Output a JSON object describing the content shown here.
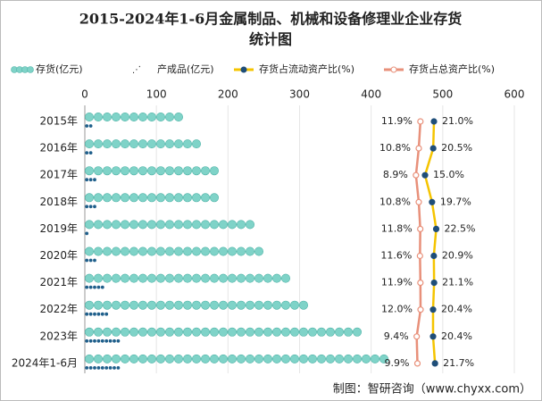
{
  "chart_data": {
    "type": "pictorial-bar-line",
    "title": [
      "2015-2024年1-6月金属制品、机械和设备修理业企业存货",
      "统计图"
    ],
    "categories": [
      "2015年",
      "2016年",
      "2017年",
      "2018年",
      "2019年",
      "2020年",
      "2021年",
      "2022年",
      "2023年",
      "2024年1-6月"
    ],
    "xlim": [
      0,
      600
    ],
    "xticks": [
      0,
      100,
      200,
      300,
      400,
      500,
      600
    ],
    "grid": true,
    "x2lim": [
      -213.6,
      75
    ],
    "series": [
      {
        "name": "存货(亿元)",
        "color": "#7fd3c8",
        "values": [
          143,
          170,
          190,
          198,
          241,
          249,
          287,
          323,
          388,
          427
        ]
      },
      {
        "name": "产成品(亿元)",
        "color": "#1f5f8b",
        "values": [
          14,
          14,
          16,
          17,
          10,
          16,
          31,
          37,
          49,
          54
        ]
      },
      {
        "name": "存货占流动资产比(%)",
        "color": "#f5c400",
        "axis": "x2",
        "values": [
          21.0,
          20.5,
          15.0,
          19.7,
          22.5,
          20.9,
          21.1,
          20.4,
          20.4,
          21.7
        ],
        "value_labels": [
          "21.0%",
          "20.5%",
          "15.0%",
          "19.7%",
          "22.5%",
          "20.9%",
          "21.1%",
          "20.4%",
          "20.4%",
          "21.7%"
        ]
      },
      {
        "name": "存货占总资产比(%)",
        "color": "#e8907a",
        "axis": "x2",
        "values": [
          11.9,
          10.8,
          8.9,
          10.8,
          11.8,
          11.6,
          11.9,
          12.0,
          9.4,
          9.9
        ],
        "value_labels": [
          "11.9%",
          "10.8%",
          "8.9%",
          "10.8%",
          "11.8%",
          "11.6%",
          "11.9%",
          "12.0%",
          "9.4%",
          "9.9%"
        ]
      }
    ],
    "source": "制图：智研咨询（www.chyxx.com）"
  }
}
